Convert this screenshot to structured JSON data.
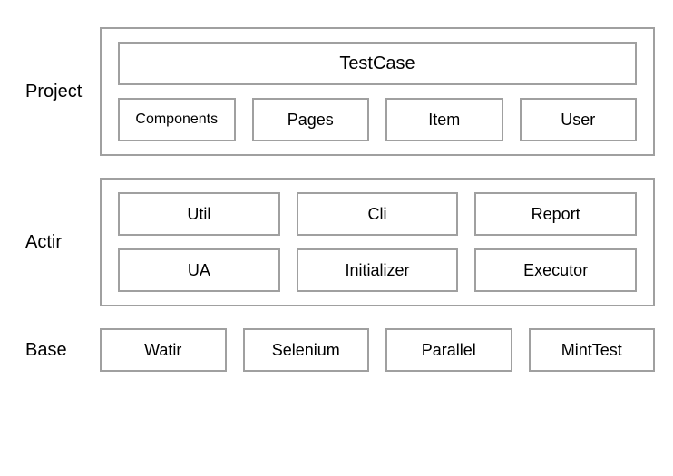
{
  "diagram": {
    "type": "infographic",
    "background_color": "#ffffff",
    "border_color": "#a0a0a0",
    "border_width": 2,
    "text_color": "#000000",
    "font_family": "Helvetica Neue",
    "font_weight": 300,
    "layers": {
      "project": {
        "label": "Project",
        "label_fontsize": 20,
        "has_outer_box": true,
        "rows": [
          {
            "wide": true,
            "boxes": [
              {
                "label": "TestCase",
                "fontsize": 20
              }
            ]
          },
          {
            "wide": false,
            "boxes": [
              {
                "label": "Components",
                "fontsize": 16
              },
              {
                "label": "Pages",
                "fontsize": 18
              },
              {
                "label": "Item",
                "fontsize": 18
              },
              {
                "label": "User",
                "fontsize": 18
              }
            ]
          }
        ]
      },
      "actir": {
        "label": "Actir",
        "label_fontsize": 20,
        "has_outer_box": true,
        "rows": [
          {
            "wide": false,
            "boxes": [
              {
                "label": "Util",
                "fontsize": 18
              },
              {
                "label": "Cli",
                "fontsize": 18
              },
              {
                "label": "Report",
                "fontsize": 18
              }
            ]
          },
          {
            "wide": false,
            "boxes": [
              {
                "label": "UA",
                "fontsize": 18
              },
              {
                "label": "Initializer",
                "fontsize": 18
              },
              {
                "label": "Executor",
                "fontsize": 18
              }
            ]
          }
        ]
      },
      "base": {
        "label": "Base",
        "label_fontsize": 20,
        "has_outer_box": false,
        "rows": [
          {
            "wide": false,
            "boxes": [
              {
                "label": "Watir",
                "fontsize": 18
              },
              {
                "label": "Selenium",
                "fontsize": 18
              },
              {
                "label": "Parallel",
                "fontsize": 18
              },
              {
                "label": "MintTest",
                "fontsize": 18
              }
            ]
          }
        ]
      }
    }
  }
}
